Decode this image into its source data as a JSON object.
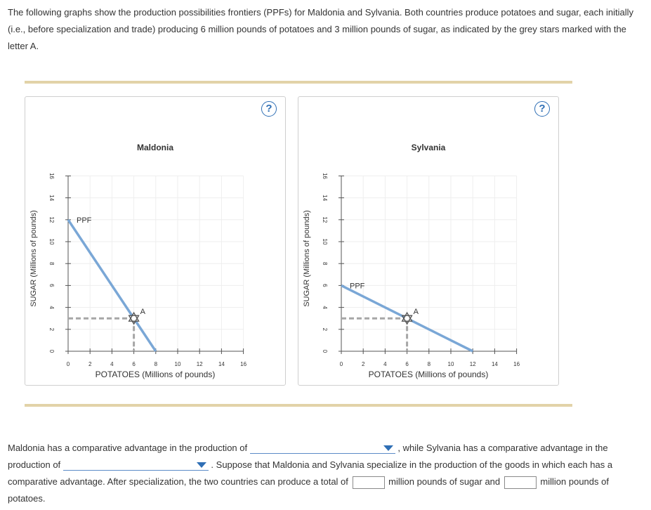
{
  "intro_text": "The following graphs show the production possibilities frontiers (PPFs) for Maldonia and Sylvania. Both countries produce potatoes and sugar, each initially (i.e., before specialization and trade) producing 6 million pounds of potatoes and 3 million pounds of sugar, as indicated by the grey stars marked with the letter A.",
  "help_icon_label": "?",
  "colors": {
    "ppf": "#7aa7d6",
    "dashed": "#a6a6a6",
    "star": "#555555",
    "rule": "#e2d3a8",
    "accent": "#2f6fb5"
  },
  "chart_data": [
    {
      "type": "line",
      "title": "Maldonia",
      "xlabel": "POTATOES (Millions of pounds)",
      "ylabel": "SUGAR (Millions of pounds)",
      "xlim": [
        0,
        16
      ],
      "ylim": [
        0,
        16
      ],
      "xticks": [
        "0",
        "2",
        "4",
        "6",
        "8",
        "10",
        "12",
        "14",
        "16"
      ],
      "yticks": [
        "0",
        "2",
        "4",
        "6",
        "8",
        "10",
        "12",
        "14",
        "16"
      ],
      "series": [
        {
          "name": "PPF",
          "x": [
            0,
            8
          ],
          "y": [
            12,
            0
          ]
        }
      ],
      "point": {
        "label": "A",
        "x": 6,
        "y": 3
      }
    },
    {
      "type": "line",
      "title": "Sylvania",
      "xlabel": "POTATOES (Millions of pounds)",
      "ylabel": "SUGAR (Millions of pounds)",
      "xlim": [
        0,
        16
      ],
      "ylim": [
        0,
        16
      ],
      "xticks": [
        "0",
        "2",
        "4",
        "6",
        "8",
        "10",
        "12",
        "14",
        "16"
      ],
      "yticks": [
        "0",
        "2",
        "4",
        "6",
        "8",
        "10",
        "12",
        "14",
        "16"
      ],
      "series": [
        {
          "name": "PPF",
          "x": [
            0,
            12
          ],
          "y": [
            6,
            0
          ]
        }
      ],
      "point": {
        "label": "A",
        "x": 6,
        "y": 3
      }
    }
  ],
  "question": {
    "p1": "Maldonia has a comparative advantage in the production of",
    "p2": ", while Sylvania has a comparative advantage in the production of",
    "p3": ". Suppose that Maldonia and Sylvania specialize in the production of the goods in which each has a comparative advantage. After specialization, the two countries can produce a total of",
    "p4": "million pounds of sugar and",
    "p5": "million pounds of potatoes.",
    "dropdown1_value": "",
    "dropdown2_value": "",
    "sugar_total_value": "",
    "potatoes_total_value": ""
  }
}
